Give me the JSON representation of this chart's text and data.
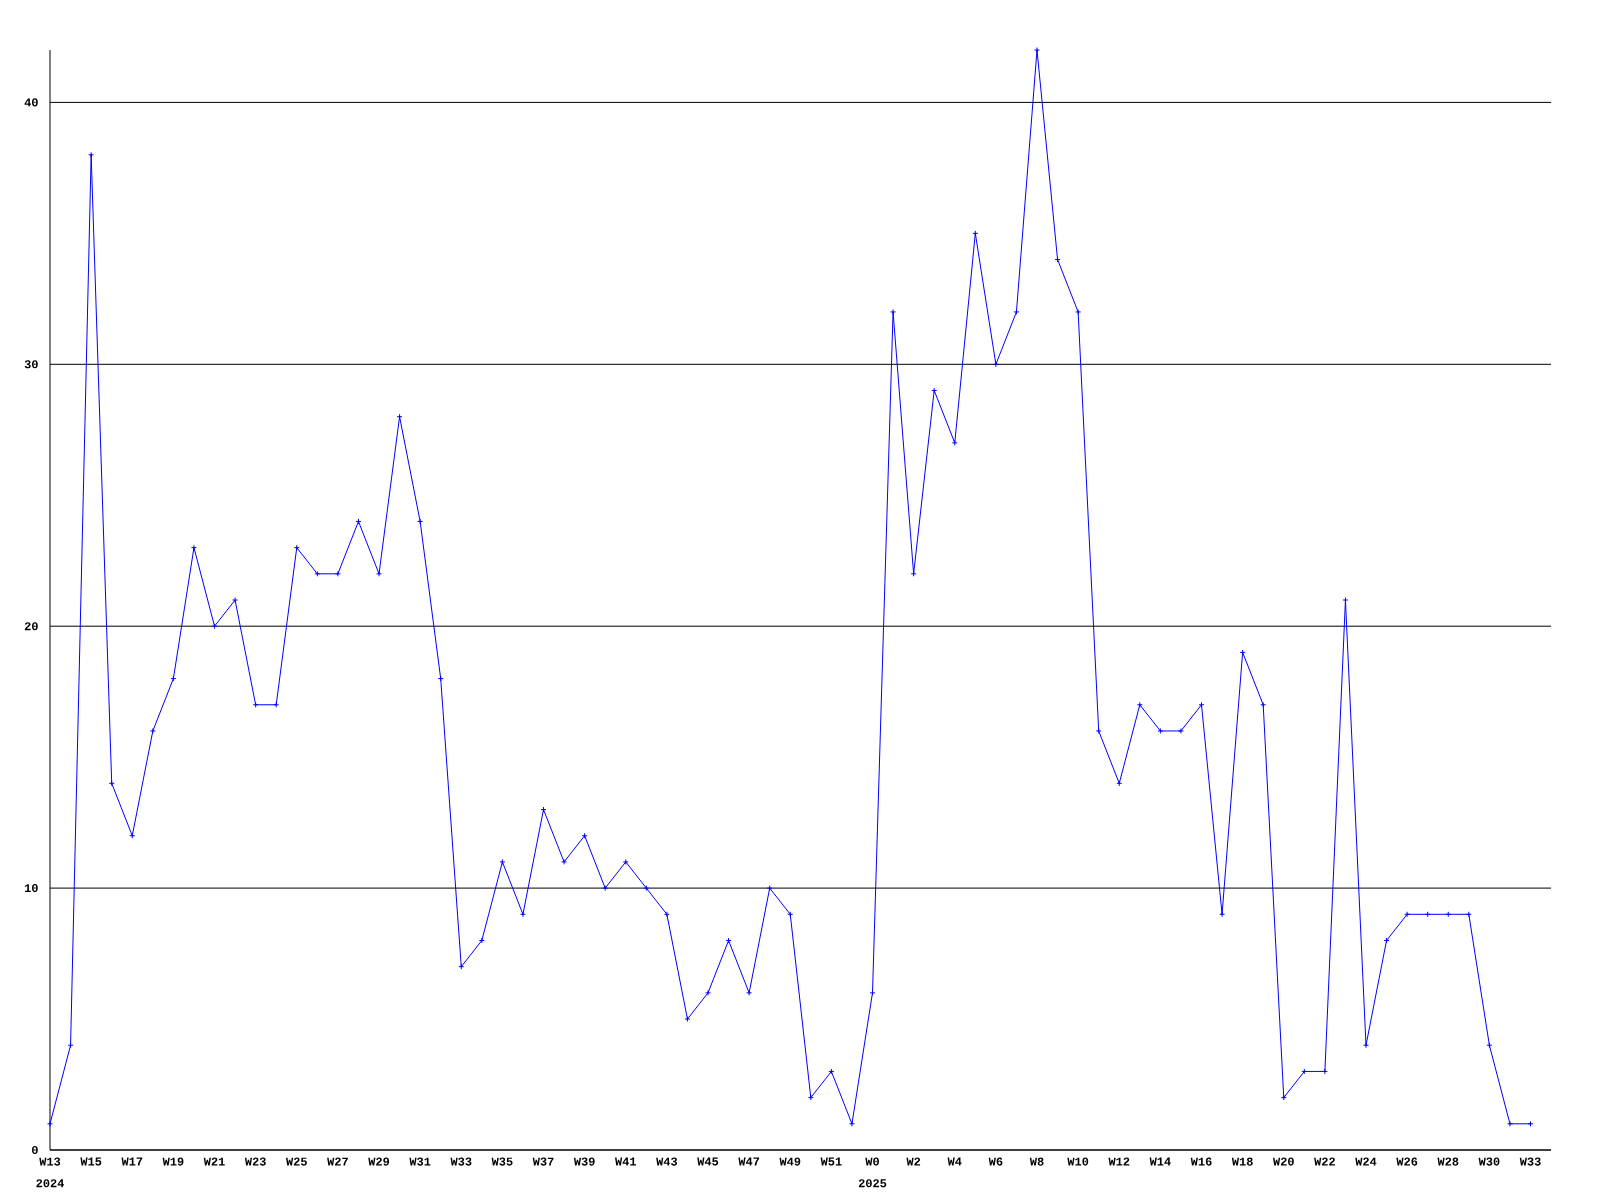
{
  "chart_data": {
    "type": "line",
    "categories": [
      "W13",
      null,
      "W15",
      null,
      "W17",
      null,
      "W19",
      null,
      "W21",
      null,
      "W23",
      null,
      "W25",
      null,
      "W27",
      null,
      "W29",
      null,
      "W31",
      null,
      "W33",
      null,
      "W35",
      null,
      "W37",
      null,
      "W39",
      null,
      "W41",
      null,
      "W43",
      null,
      "W45",
      null,
      "W47",
      null,
      "W49",
      null,
      "W51",
      null,
      "W0",
      null,
      "W2",
      null,
      "W4",
      null,
      "W6",
      null,
      "W8",
      null,
      "W10",
      null,
      "W12",
      null,
      "W14",
      null,
      "W16",
      null,
      "W18",
      null,
      "W20",
      null,
      "W22",
      null,
      "W24",
      null,
      "W26",
      null,
      "W28",
      null,
      "W30",
      null,
      "W33"
    ],
    "values": [
      1,
      4,
      38,
      14,
      12,
      16,
      18,
      23,
      20,
      21,
      17,
      17,
      23,
      22,
      22,
      24,
      22,
      28,
      24,
      18,
      7,
      8,
      11,
      9,
      13,
      11,
      12,
      10,
      11,
      10,
      9,
      5,
      6,
      8,
      6,
      10,
      9,
      2,
      3,
      1,
      6,
      32,
      22,
      29,
      27,
      35,
      30,
      32,
      42,
      34,
      32,
      16,
      14,
      17,
      16,
      16,
      17,
      9,
      19,
      17,
      2,
      3,
      3,
      21,
      4,
      8,
      9,
      9,
      9,
      9,
      4,
      1,
      1
    ],
    "color": "#0000ff",
    "marker": "cross",
    "grid": "y",
    "ylim": [
      0,
      42
    ],
    "yticks": [
      0,
      10,
      20,
      30,
      40
    ],
    "annotations": [
      "2024",
      "2025"
    ]
  }
}
